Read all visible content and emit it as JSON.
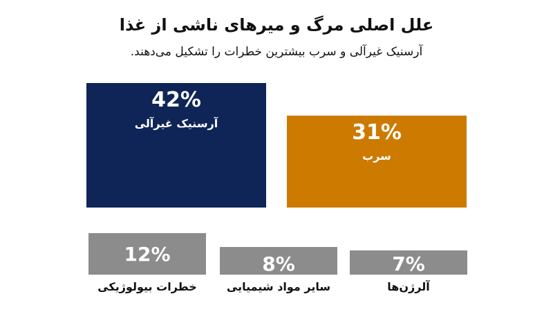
{
  "chart_data": {
    "type": "bar",
    "title": "علل اصلی مرگ و میرهای ناشی از غذا",
    "subtitle": "آرسنیک غیرآلی و سرب بیشترین خطرات را تشکیل می‌دهند.",
    "categories": [
      "آرسنیک غیرآلی",
      "سرب",
      "خطرات بیولوژیکی",
      "سایر مواد شیمیایی",
      "آلرژن‌ها"
    ],
    "values": [
      42,
      31,
      12,
      8,
      7
    ],
    "value_labels": [
      "42%",
      "31%",
      "12%",
      "8%",
      "7%"
    ],
    "colors": [
      "#0f2557",
      "#cc7a00",
      "#8c8c8c",
      "#8c8c8c",
      "#8c8c8c"
    ]
  }
}
